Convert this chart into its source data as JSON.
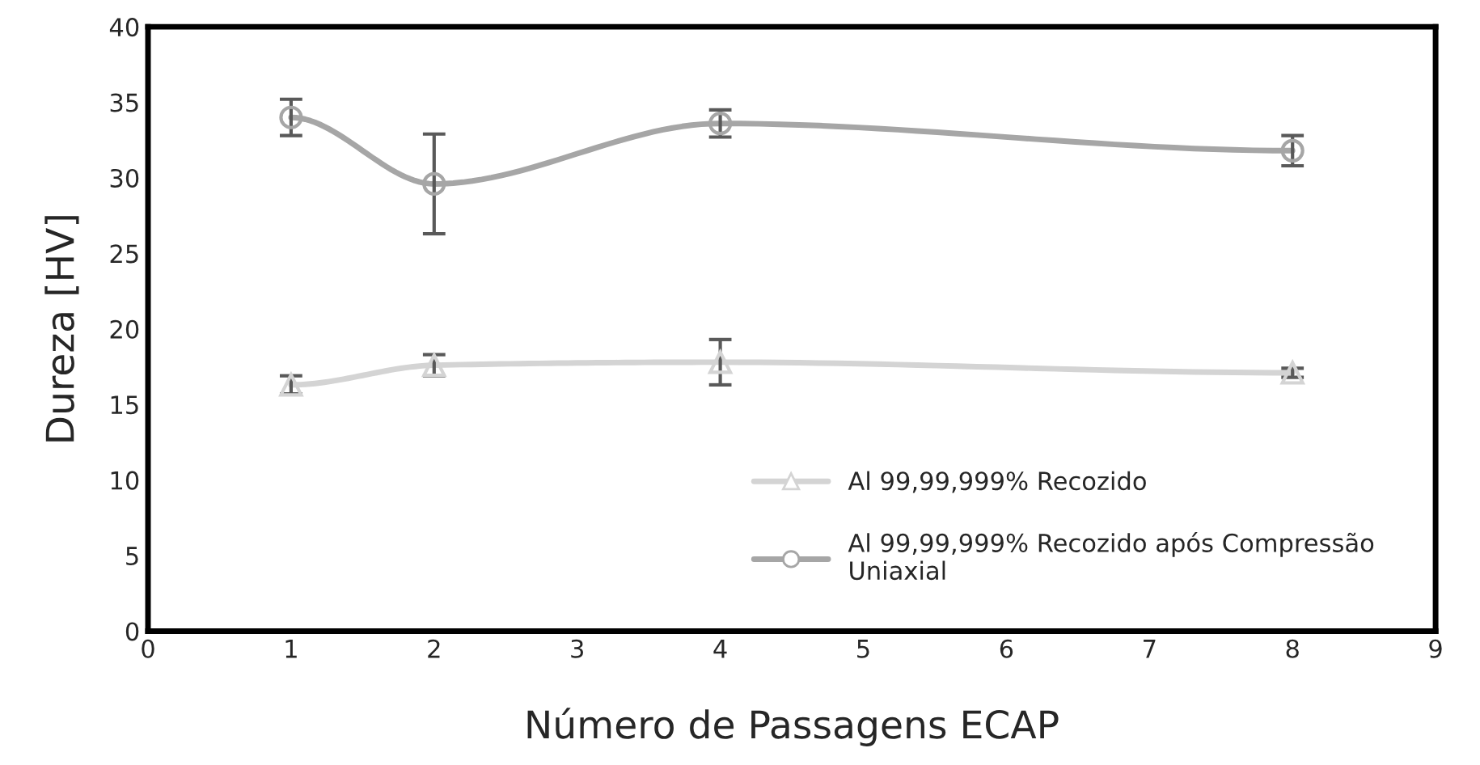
{
  "chart_data": {
    "type": "line",
    "xlabel": "Número de Passagens ECAP",
    "ylabel": "Dureza [HV]",
    "x": [
      1,
      2,
      4,
      8
    ],
    "series": [
      {
        "name": "Al 99,99,999% Recozido",
        "color": "#d4d4d4",
        "marker": "triangle",
        "values": [
          16.3,
          17.6,
          17.8,
          17.1
        ],
        "errors": [
          0.6,
          0.7,
          1.5,
          0.3
        ]
      },
      {
        "name": "Al 99,99,999% Recozido após Compressão Uniaxial",
        "color": "#a6a6a6",
        "marker": "circle",
        "values": [
          34.0,
          29.6,
          33.6,
          31.8
        ],
        "errors": [
          1.2,
          3.3,
          0.9,
          1.0
        ]
      }
    ],
    "xlim": [
      0,
      9
    ],
    "xticks": [
      0,
      1,
      2,
      3,
      4,
      5,
      6,
      7,
      8,
      9
    ],
    "ylim": [
      0,
      40
    ],
    "yticks": [
      0,
      5,
      10,
      15,
      20,
      25,
      30,
      35,
      40
    ],
    "grid": false,
    "legend": "bottom right",
    "line_style": "solid"
  }
}
